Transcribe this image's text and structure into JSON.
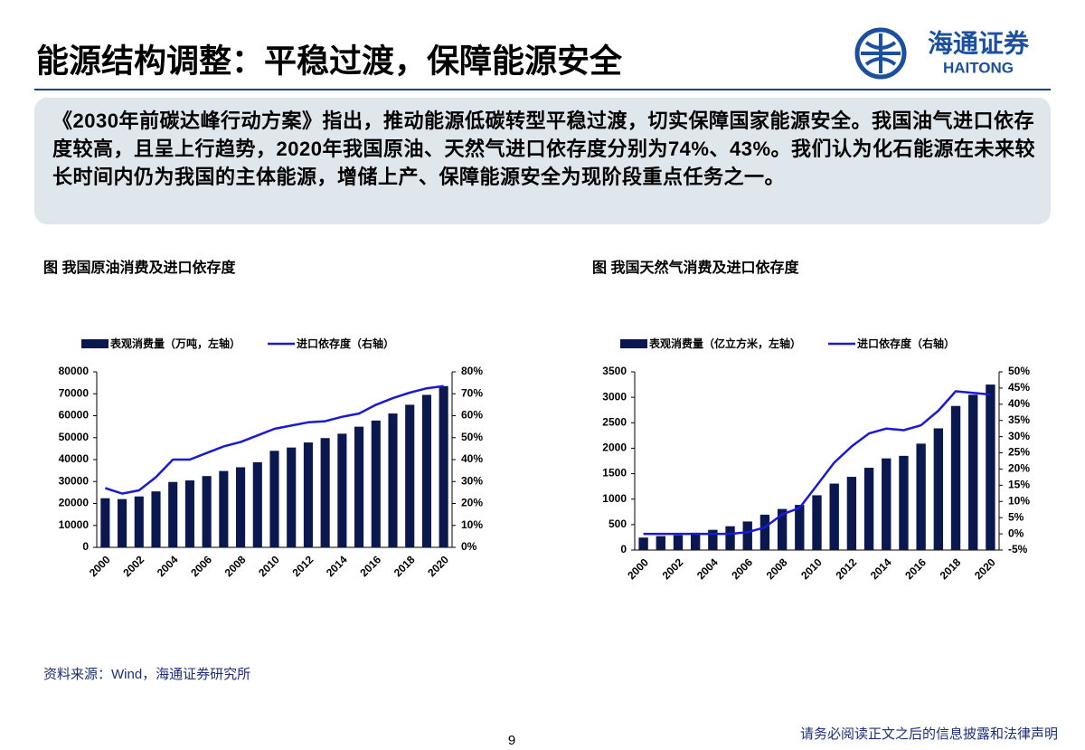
{
  "header": {
    "title": "能源结构调整：平稳过渡，保障能源安全",
    "logo_cn": "海通证券",
    "logo_en": "HAITONG"
  },
  "summary": "《2030年前碳达峰行动方案》指出，推动能源低碳转型平稳过渡，切实保障国家能源安全。我国油气进口依存度较高，且呈上行趋势，2020年我国原油、天然气进口依存度分别为74%、43%。我们认为化石能源在未来较长时间内仍为我国的主体能源，增储上产、保障能源安全为现阶段重点任务之一。",
  "chart_data": [
    {
      "type": "combo",
      "title": "图 我国原油消费及进口依存度",
      "categories": [
        "2000",
        null,
        "2002",
        null,
        "2004",
        null,
        "2006",
        null,
        "2008",
        null,
        "2010",
        null,
        "2012",
        null,
        "2014",
        null,
        "2016",
        null,
        "2018",
        null,
        "2020"
      ],
      "series": [
        {
          "name": "表观消费量（万吨，左轴）",
          "type": "bar",
          "color": "#0b1850",
          "values": [
            22400,
            22000,
            23200,
            25500,
            29800,
            30500,
            32500,
            34800,
            36500,
            38800,
            44000,
            45500,
            47800,
            49800,
            51800,
            55000,
            57800,
            61000,
            65000,
            69500,
            73500
          ]
        },
        {
          "name": "进口依存度（右轴）",
          "type": "line",
          "axis": "y2",
          "color": "#1a1ad6",
          "values": [
            27,
            24.5,
            26,
            32,
            40,
            40,
            43,
            46,
            48,
            51,
            54,
            55.5,
            57,
            57.5,
            59.5,
            61,
            65,
            68,
            70.5,
            72.5,
            73.5
          ]
        }
      ],
      "ylim": [
        0,
        80000
      ],
      "yticks": [
        0,
        10000,
        20000,
        30000,
        40000,
        50000,
        60000,
        70000,
        80000
      ],
      "y2lim": [
        0,
        80
      ],
      "y2ticks": [
        {
          "value": 0,
          "label": "0%"
        },
        {
          "value": 10,
          "label": "10%"
        },
        {
          "value": 20,
          "label": "20%"
        },
        {
          "value": 30,
          "label": "30%"
        },
        {
          "value": 40,
          "label": "40%"
        },
        {
          "value": 50,
          "label": "50%"
        },
        {
          "value": 60,
          "label": "60%"
        },
        {
          "value": 70,
          "label": "70%"
        },
        {
          "value": 80,
          "label": "80%"
        }
      ]
    },
    {
      "type": "combo",
      "title": "图 我国天然气消费及进口依存度",
      "categories": [
        "2000",
        null,
        "2002",
        null,
        "2004",
        null,
        "2006",
        null,
        "2008",
        null,
        "2010",
        null,
        "2012",
        null,
        "2014",
        null,
        "2016",
        null,
        "2018",
        null,
        "2020"
      ],
      "series": [
        {
          "name": "表观消费量（亿立方米，左轴）",
          "type": "bar",
          "color": "#0b1850",
          "values": [
            245,
            274,
            292,
            339,
            397,
            468,
            561,
            695,
            807,
            887,
            1076,
            1305,
            1438,
            1616,
            1800,
            1850,
            2090,
            2390,
            2830,
            3050,
            3250
          ]
        },
        {
          "name": "进口依存度（右轴）",
          "type": "line",
          "axis": "y2",
          "color": "#1a1ad6",
          "values": [
            0,
            0,
            0,
            0,
            0,
            0,
            0.5,
            2,
            6,
            8,
            15,
            22,
            27,
            31,
            32.5,
            32,
            33.5,
            38,
            44,
            43.5,
            43
          ]
        }
      ],
      "ylim": [
        0,
        3500
      ],
      "yticks": [
        0,
        500,
        1000,
        1500,
        2000,
        2500,
        3000,
        3500
      ],
      "y2lim": [
        -5,
        50
      ],
      "y2ticks": [
        {
          "value": -5,
          "label": "-5%"
        },
        {
          "value": 0,
          "label": "0%"
        },
        {
          "value": 5,
          "label": "5%"
        },
        {
          "value": 10,
          "label": "10%"
        },
        {
          "value": 15,
          "label": "15%"
        },
        {
          "value": 20,
          "label": "20%"
        },
        {
          "value": 25,
          "label": "25%"
        },
        {
          "value": 30,
          "label": "30%"
        },
        {
          "value": 35,
          "label": "35%"
        },
        {
          "value": 40,
          "label": "40%"
        },
        {
          "value": 45,
          "label": "45%"
        },
        {
          "value": 50,
          "label": "50%"
        }
      ]
    }
  ],
  "source": "资料来源：Wind，海通证券研究所",
  "page_number": "9",
  "disclaimer": "请务必阅读正文之后的信息披露和法律声明"
}
